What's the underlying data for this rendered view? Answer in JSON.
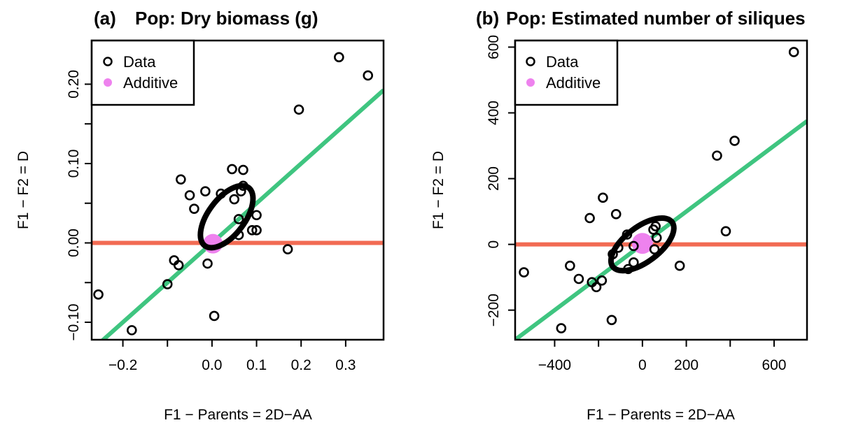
{
  "chart_data": [
    {
      "type": "scatter",
      "panel": "(a)",
      "title": "Pop: Dry biomass (g)",
      "xlabel": "F1 − Parents = 2D−AA",
      "ylabel": "F1 − F2 = D",
      "xlim": [
        -0.27,
        0.385
      ],
      "ylim": [
        -0.122,
        0.255
      ],
      "xticks": [
        -0.2,
        0.0,
        0.1,
        0.2,
        0.3
      ],
      "xtick_labels": [
        "−0.2",
        "0.0",
        "0.1",
        "0.2",
        "0.3"
      ],
      "xticks_unlabeled": [
        -0.1
      ],
      "yticks": [
        -0.1,
        0.0,
        0.1,
        0.2
      ],
      "ytick_labels": [
        "−0.10",
        "0.00",
        "0.10",
        "0.20"
      ],
      "yticks_unlabeled": [
        -0.05,
        0.05,
        0.15
      ],
      "legend": {
        "position": "top-left",
        "entries": [
          {
            "label": "Data",
            "marker": "open-circle",
            "color": "#000000"
          },
          {
            "label": "Additive",
            "marker": "filled-circle",
            "color": "#ee82ee"
          }
        ]
      },
      "series": [
        {
          "name": "Data",
          "points": [
            [
              -0.255,
              -0.065
            ],
            [
              -0.18,
              -0.11
            ],
            [
              -0.1,
              -0.052
            ],
            [
              -0.085,
              -0.022
            ],
            [
              -0.075,
              -0.028
            ],
            [
              -0.07,
              0.08
            ],
            [
              -0.05,
              0.06
            ],
            [
              -0.04,
              0.043
            ],
            [
              -0.015,
              0.065
            ],
            [
              -0.01,
              -0.026
            ],
            [
              0.005,
              -0.092
            ],
            [
              0.02,
              0.062
            ],
            [
              0.045,
              0.093
            ],
            [
              0.05,
              0.055
            ],
            [
              0.06,
              0.03
            ],
            [
              0.06,
              0.01
            ],
            [
              0.065,
              0.065
            ],
            [
              0.07,
              0.092
            ],
            [
              0.07,
              0.072
            ],
            [
              0.09,
              0.016
            ],
            [
              0.1,
              0.035
            ],
            [
              0.1,
              0.016
            ],
            [
              0.17,
              -0.008
            ],
            [
              0.195,
              0.168
            ],
            [
              0.285,
              0.234
            ],
            [
              0.35,
              0.211
            ]
          ]
        },
        {
          "name": "Additive",
          "points": [
            [
              0.002,
              -0.001
            ]
          ]
        }
      ],
      "lines": [
        {
          "color": "#f26b53",
          "slope": 0,
          "intercept": 0
        },
        {
          "color": "#3fc580",
          "slope": 0.5,
          "intercept": 0
        }
      ],
      "ellipse": {
        "center": [
          0.033,
          0.033
        ],
        "color": "#000000"
      }
    },
    {
      "type": "scatter",
      "panel": "(b)",
      "title": "Pop: Estimated number of siliques",
      "xlabel": "F1 − Parents = 2D−AA",
      "ylabel": "F1 − F2 = D",
      "xlim": [
        -580,
        750
      ],
      "ylim": [
        -290,
        620
      ],
      "xticks": [
        -400,
        0,
        200,
        600
      ],
      "xtick_labels": [
        "−400",
        "0",
        "200",
        "600"
      ],
      "xticks_unlabeled": [
        -200,
        400
      ],
      "yticks": [
        -200,
        0,
        200,
        400,
        600
      ],
      "ytick_labels": [
        "−200",
        "0",
        "200",
        "400",
        "600"
      ],
      "legend": {
        "position": "top-left",
        "entries": [
          {
            "label": "Data",
            "marker": "open-circle",
            "color": "#000000"
          },
          {
            "label": "Additive",
            "marker": "filled-circle",
            "color": "#ee82ee"
          }
        ]
      },
      "series": [
        {
          "name": "Data",
          "points": [
            [
              -540,
              -85
            ],
            [
              -370,
              -255
            ],
            [
              -330,
              -65
            ],
            [
              -290,
              -105
            ],
            [
              -240,
              80
            ],
            [
              -230,
              -115
            ],
            [
              -210,
              -130
            ],
            [
              -185,
              -110
            ],
            [
              -180,
              142
            ],
            [
              -140,
              -230
            ],
            [
              -135,
              -30
            ],
            [
              -120,
              92
            ],
            [
              -110,
              -10
            ],
            [
              -70,
              30
            ],
            [
              -65,
              -75
            ],
            [
              -40,
              -5
            ],
            [
              -40,
              -55
            ],
            [
              50,
              45
            ],
            [
              55,
              -15
            ],
            [
              60,
              55
            ],
            [
              65,
              20
            ],
            [
              170,
              -65
            ],
            [
              340,
              270
            ],
            [
              380,
              40
            ],
            [
              420,
              315
            ],
            [
              690,
              585
            ]
          ]
        },
        {
          "name": "Additive",
          "points": [
            [
              0,
              3
            ]
          ]
        }
      ],
      "lines": [
        {
          "color": "#f26b53",
          "slope": 0,
          "intercept": 0
        },
        {
          "color": "#3fc580",
          "slope": 0.5,
          "intercept": 0
        }
      ],
      "ellipse": {
        "center": [
          0,
          0
        ],
        "color": "#000000"
      }
    }
  ]
}
